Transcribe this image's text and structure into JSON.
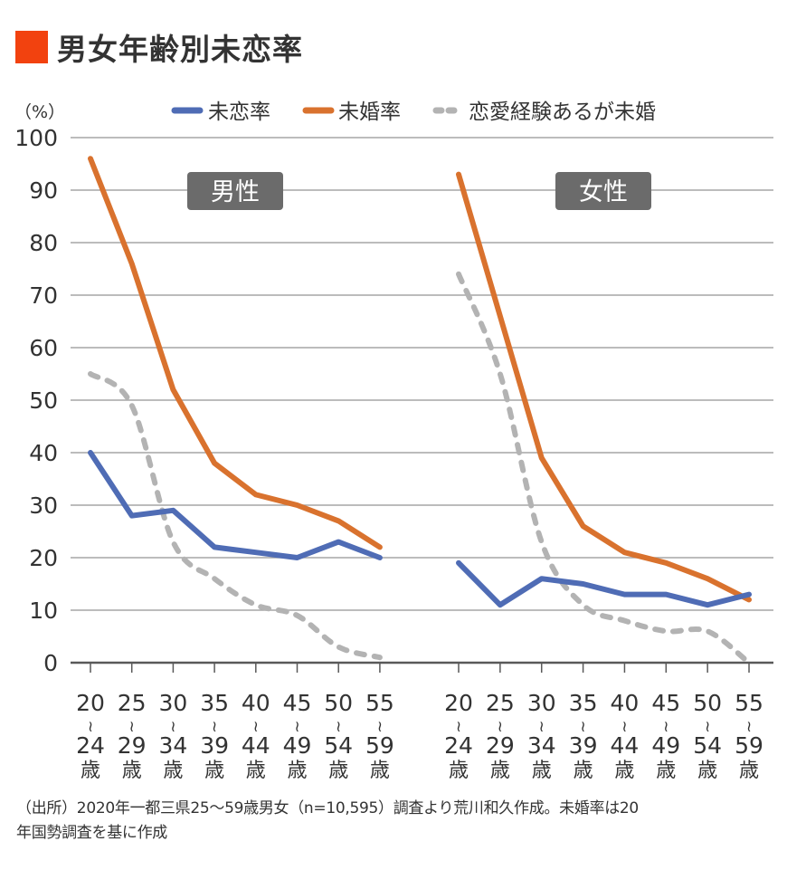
{
  "title": "男女年齢別未恋率",
  "colors": {
    "title_marker": "#F2420F",
    "grid": "#a6a6a6",
    "axis": "#595959",
    "panel_badge_bg": "#6b6b6b",
    "panel_badge_text": "#ffffff"
  },
  "chart_data": {
    "type": "line",
    "title": "男女年齢別未恋率",
    "ylabel": "（%）",
    "xlabel": "",
    "ylim": [
      0,
      100
    ],
    "yticks": [
      0,
      10,
      20,
      30,
      40,
      50,
      60,
      70,
      80,
      90,
      100
    ],
    "grid": true,
    "legend_position": "top",
    "legend": [
      {
        "name": "未恋率",
        "color": "#4f6cb5",
        "style": "solid"
      },
      {
        "name": "未婚率",
        "color": "#d9722e",
        "style": "solid"
      },
      {
        "name": "恋愛経験あるが未婚",
        "color": "#b3b3b3",
        "style": "dashed"
      }
    ],
    "categories": [
      {
        "from": "20",
        "to": "24",
        "unit": "歳"
      },
      {
        "from": "25",
        "to": "29",
        "unit": "歳"
      },
      {
        "from": "30",
        "to": "34",
        "unit": "歳"
      },
      {
        "from": "35",
        "to": "39",
        "unit": "歳"
      },
      {
        "from": "40",
        "to": "44",
        "unit": "歳"
      },
      {
        "from": "45",
        "to": "49",
        "unit": "歳"
      },
      {
        "from": "50",
        "to": "54",
        "unit": "歳"
      },
      {
        "from": "55",
        "to": "59",
        "unit": "歳"
      }
    ],
    "range_separator": "≀",
    "panels": [
      {
        "name": "男性",
        "series": [
          {
            "name": "未恋率",
            "values": [
              40,
              28,
              29,
              22,
              21,
              20,
              23,
              20
            ]
          },
          {
            "name": "未婚率",
            "values": [
              96,
              76,
              52,
              38,
              32,
              30,
              27,
              22
            ]
          },
          {
            "name": "恋愛経験あるが未婚",
            "values": [
              55,
              49,
              23,
              16,
              11,
              9,
              3,
              1
            ]
          }
        ]
      },
      {
        "name": "女性",
        "series": [
          {
            "name": "未恋率",
            "values": [
              19,
              11,
              16,
              15,
              13,
              13,
              11,
              13
            ]
          },
          {
            "name": "未婚率",
            "values": [
              93,
              66,
              39,
              26,
              21,
              19,
              16,
              12
            ]
          },
          {
            "name": "恋愛経験あるが未婚",
            "values": [
              74,
              55,
              23,
              11,
              8,
              6,
              6,
              0
            ]
          }
        ]
      }
    ]
  },
  "footer": {
    "line1": "（出所）2020年一都三県25〜59歳男女（n=10,595）調査より荒川和久作成。未婚率は20",
    "line2": "年国勢調査を基に作成"
  }
}
